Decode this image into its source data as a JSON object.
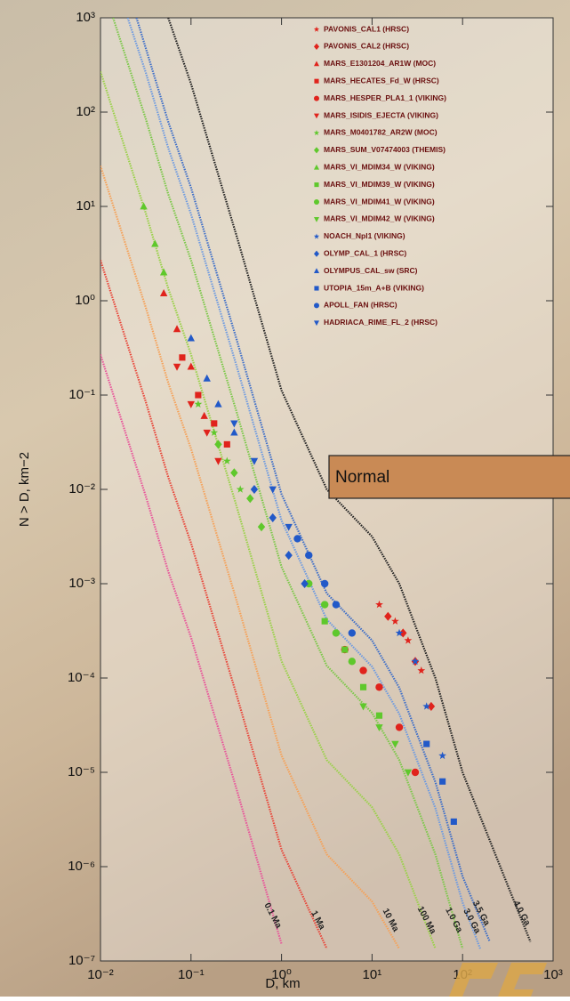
{
  "chart_data": {
    "type": "scatter",
    "x_label": "D, km",
    "y_label": "N > D, km−2",
    "overlay_label": "Normal",
    "log_x": true,
    "log_y": true,
    "xlim": [
      0.01,
      1000
    ],
    "ylim": [
      1e-07,
      1000
    ],
    "xticks": [
      {
        "value": 0.01,
        "label": "10⁻²"
      },
      {
        "value": 0.1,
        "label": "10⁻¹"
      },
      {
        "value": 1,
        "label": "10⁰"
      },
      {
        "value": 10,
        "label": "10¹"
      },
      {
        "value": 100,
        "label": "10²"
      },
      {
        "value": 1000,
        "label": "10³"
      }
    ],
    "yticks": [
      {
        "value": 1e-07,
        "label": "10⁻⁷"
      },
      {
        "value": 1e-06,
        "label": "10⁻⁶"
      },
      {
        "value": 1e-05,
        "label": "10⁻⁵"
      },
      {
        "value": 0.0001,
        "label": "10⁻⁴"
      },
      {
        "value": 0.001,
        "label": "10⁻³"
      },
      {
        "value": 0.01,
        "label": "10⁻²"
      },
      {
        "value": 0.1,
        "label": "10⁻¹"
      },
      {
        "value": 1,
        "label": "10⁰"
      },
      {
        "value": 10,
        "label": "10¹"
      },
      {
        "value": 100,
        "label": "10²"
      },
      {
        "value": 1000,
        "label": "10³"
      }
    ],
    "isochrones": [
      {
        "name": "0.1 Ma",
        "color": "#e8559a",
        "x": [
          0.01,
          0.0316,
          0.056,
          0.1,
          0.316,
          1
        ],
        "y": [
          0.269,
          0.0085,
          0.00135,
          0.00027,
          6.8e-06,
          1.51e-07
        ]
      },
      {
        "name": "1 Ma",
        "color": "#e8463a",
        "x": [
          0.01,
          0.0316,
          0.056,
          0.1,
          0.316,
          1,
          3.16
        ],
        "y": [
          2.69,
          0.085,
          0.0135,
          0.0027,
          6.8e-05,
          1.51e-06,
          1.35e-07
        ]
      },
      {
        "name": "10 Ma",
        "color": "#f5a25a",
        "x": [
          0.01,
          0.0316,
          0.056,
          0.1,
          0.316,
          1,
          3.16,
          10,
          20
        ],
        "y": [
          26.9,
          0.85,
          0.135,
          0.027,
          0.00068,
          1.51e-05,
          1.35e-06,
          4.27e-07,
          1.35e-07
        ]
      },
      {
        "name": "100 Ma",
        "color": "#9ad14a",
        "x": [
          0.01,
          0.0316,
          0.056,
          0.1,
          0.316,
          1,
          3.16,
          10,
          20,
          50
        ],
        "y": [
          269,
          8.5,
          1.35,
          0.27,
          0.0068,
          0.000151,
          1.35e-05,
          4.27e-06,
          1.35e-06,
          1.35e-07
        ]
      },
      {
        "name": "1.0 Ga",
        "color": "#7cc84a",
        "x": [
          0.0138,
          0.0316,
          0.056,
          0.1,
          0.316,
          1,
          3.16,
          10,
          20,
          50,
          100
        ],
        "y": [
          1000,
          85,
          13.5,
          2.7,
          0.068,
          0.00151,
          0.000135,
          4.27e-05,
          1.35e-05,
          1.35e-06,
          1.35e-07
        ]
      },
      {
        "name": "3.0 Ga",
        "color": "#6f9be0",
        "x": [
          0.02,
          0.0316,
          0.056,
          0.1,
          0.316,
          1,
          3.16,
          10,
          20,
          50,
          100,
          158
        ],
        "y": [
          1000,
          263,
          41.7,
          8.3,
          0.209,
          0.00468,
          0.000417,
          0.000132,
          4.17e-05,
          4.17e-06,
          4.17e-07,
          1.32e-07
        ]
      },
      {
        "name": "3.5 Ga",
        "color": "#3f6fc8",
        "x": [
          0.025,
          0.056,
          0.1,
          0.316,
          1,
          3.16,
          10,
          20,
          50,
          100,
          200
        ],
        "y": [
          1000,
          79,
          15.8,
          0.4,
          0.0089,
          0.00079,
          0.00025,
          7.9e-05,
          7.9e-06,
          7.9e-07,
          1.6e-07
        ]
      },
      {
        "name": "4.0 Ga",
        "color": "#222222",
        "x": [
          0.056,
          0.1,
          0.316,
          1,
          3.16,
          10,
          20,
          50,
          100,
          316,
          562
        ],
        "y": [
          1000,
          200,
          5,
          0.112,
          0.01,
          0.00316,
          0.001,
          0.0001,
          1e-05,
          6.3e-07,
          1.6e-07
        ]
      }
    ],
    "series": [
      {
        "name": "PAVONIS_CAL1 (HRSC)",
        "color": "#e0231c",
        "marker": "star",
        "x": [
          12,
          18,
          25,
          35
        ],
        "y": [
          0.0006,
          0.0004,
          0.00025,
          0.00012
        ]
      },
      {
        "name": "PAVONIS_CAL2 (HRSC)",
        "color": "#e0231c",
        "marker": "diamond",
        "x": [
          15,
          22,
          30,
          45
        ],
        "y": [
          0.00045,
          0.0003,
          0.00015,
          5e-05
        ]
      },
      {
        "name": "MARS_E1301204_AR1W (MOC)",
        "color": "#e0231c",
        "marker": "triangle",
        "x": [
          0.05,
          0.07,
          0.1,
          0.14
        ],
        "y": [
          1.2,
          0.5,
          0.2,
          0.06
        ]
      },
      {
        "name": "MARS_HECATES_Fd_W (HRSC)",
        "color": "#e0231c",
        "marker": "square",
        "x": [
          0.08,
          0.12,
          0.18,
          0.25
        ],
        "y": [
          0.25,
          0.1,
          0.05,
          0.03
        ]
      },
      {
        "name": "MARS_HESPER_PLA1_1 (VIKING)",
        "color": "#e0231c",
        "marker": "circle",
        "x": [
          5,
          8,
          12,
          20,
          30
        ],
        "y": [
          0.0002,
          0.00012,
          8e-05,
          3e-05,
          1e-05
        ]
      },
      {
        "name": "MARS_ISIDIS_EJECTA (VIKING)",
        "color": "#e0231c",
        "marker": "down",
        "x": [
          0.07,
          0.1,
          0.15,
          0.2
        ],
        "y": [
          0.2,
          0.08,
          0.04,
          0.02
        ]
      },
      {
        "name": "MARS_M0401782_AR2W (MOC)",
        "color": "#5fc82c",
        "marker": "star",
        "x": [
          0.12,
          0.18,
          0.25,
          0.35
        ],
        "y": [
          0.08,
          0.04,
          0.02,
          0.01
        ]
      },
      {
        "name": "MARS_SUM_V07474003 (THEMIS)",
        "color": "#5fc82c",
        "marker": "diamond",
        "x": [
          0.2,
          0.3,
          0.45,
          0.6
        ],
        "y": [
          0.03,
          0.015,
          0.008,
          0.004
        ]
      },
      {
        "name": "MARS_VI_MDIM34_W (VIKING)",
        "color": "#5fc82c",
        "marker": "triangle",
        "x": [
          0.03,
          0.04,
          0.05
        ],
        "y": [
          10,
          4,
          2
        ]
      },
      {
        "name": "MARS_VI_MDIM39_W (VIKING)",
        "color": "#5fc82c",
        "marker": "square",
        "x": [
          3,
          5,
          8,
          12
        ],
        "y": [
          0.0004,
          0.0002,
          8e-05,
          4e-05
        ]
      },
      {
        "name": "MARS_VI_MDIM41_W (VIKING)",
        "color": "#5fc82c",
        "marker": "circle",
        "x": [
          2,
          3,
          4,
          6
        ],
        "y": [
          0.001,
          0.0006,
          0.0003,
          0.00015
        ]
      },
      {
        "name": "MARS_VI_MDIM42_W (VIKING)",
        "color": "#5fc82c",
        "marker": "down",
        "x": [
          8,
          12,
          18,
          25
        ],
        "y": [
          5e-05,
          3e-05,
          2e-05,
          1e-05
        ]
      },
      {
        "name": "NOACH_Npl1 (VIKING)",
        "color": "#2259c8",
        "marker": "star",
        "x": [
          20,
          30,
          40,
          60
        ],
        "y": [
          0.0003,
          0.00015,
          5e-05,
          1.5e-05
        ]
      },
      {
        "name": "OLYMP_CAL_1 (HRSC)",
        "color": "#2259c8",
        "marker": "diamond",
        "x": [
          0.5,
          0.8,
          1.2,
          1.8
        ],
        "y": [
          0.01,
          0.005,
          0.002,
          0.001
        ]
      },
      {
        "name": "OLYMPUS_CAL_sw (SRC)",
        "color": "#2259c8",
        "marker": "triangle",
        "x": [
          0.1,
          0.15,
          0.2,
          0.3
        ],
        "y": [
          0.4,
          0.15,
          0.08,
          0.04
        ]
      },
      {
        "name": "UTOPIA_15m_A+B (VIKING)",
        "color": "#2259c8",
        "marker": "square",
        "x": [
          40,
          60,
          80
        ],
        "y": [
          2e-05,
          8e-06,
          3e-06
        ]
      },
      {
        "name": "APOLL_FAN (HRSC)",
        "color": "#2259c8",
        "marker": "circle",
        "x": [
          1.5,
          2,
          3,
          4,
          6
        ],
        "y": [
          0.003,
          0.002,
          0.001,
          0.0006,
          0.0003
        ]
      },
      {
        "name": "HADRIACA_RIME_FL_2 (HRSC)",
        "color": "#2259c8",
        "marker": "down",
        "x": [
          0.3,
          0.5,
          0.8,
          1.2
        ],
        "y": [
          0.05,
          0.02,
          0.01,
          0.004
        ]
      }
    ]
  }
}
